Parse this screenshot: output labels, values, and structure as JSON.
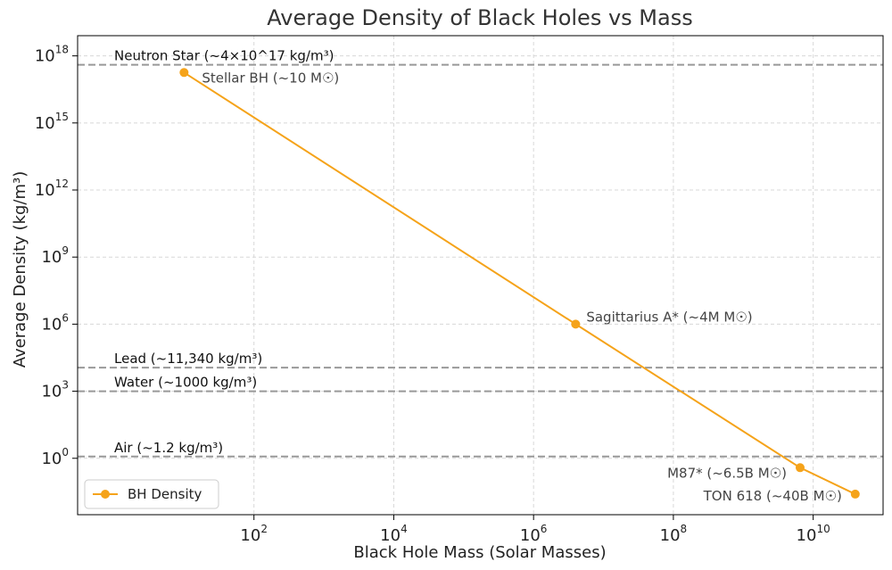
{
  "chart_data": {
    "type": "line",
    "title": "Average Density of Black Holes vs Mass",
    "xlabel": "Black Hole Mass (Solar Masses)",
    "ylabel": "Average Density (kg/m³)",
    "xscale": "log",
    "yscale": "log",
    "xlim": [
      0.3,
      100000000000
    ],
    "ylim": [
      0.003,
      8e+18
    ],
    "grid": true,
    "x_ticks": [
      {
        "value": 100,
        "base": "10",
        "exp": "2"
      },
      {
        "value": 10000,
        "base": "10",
        "exp": "4"
      },
      {
        "value": 1000000,
        "base": "10",
        "exp": "6"
      },
      {
        "value": 100000000,
        "base": "10",
        "exp": "8"
      },
      {
        "value": 10000000000,
        "base": "10",
        "exp": "10"
      }
    ],
    "y_ticks": [
      {
        "value": 1,
        "base": "10",
        "exp": "0"
      },
      {
        "value": 1000,
        "base": "10",
        "exp": "3"
      },
      {
        "value": 1000000,
        "base": "10",
        "exp": "6"
      },
      {
        "value": 1000000000,
        "base": "10",
        "exp": "9"
      },
      {
        "value": 1000000000000,
        "base": "10",
        "exp": "12"
      },
      {
        "value": 1000000000000000,
        "base": "10",
        "exp": "15"
      },
      {
        "value": 1000000000000000000,
        "base": "10",
        "exp": "18"
      }
    ],
    "series": [
      {
        "name": "BH Density",
        "color": "#f5a31a",
        "points": [
          {
            "x": 10,
            "y": 1.8e+17,
            "label": "Stellar BH (~10 M☉)",
            "label_pos": "right-below"
          },
          {
            "x": 4000000,
            "y": 1000000.0,
            "label": "Sagittarius A* (~4M M☉)",
            "label_pos": "right"
          },
          {
            "x": 6500000000,
            "y": 0.38,
            "label": "M87* (~6.5B M☉)",
            "label_pos": "left-below"
          },
          {
            "x": 40000000000,
            "y": 0.025,
            "label": "TON 618 (~40B M☉)",
            "label_pos": "left"
          }
        ]
      }
    ],
    "reference_lines": [
      {
        "y": 4e+17,
        "label": "Neutron Star (~4×10^17 kg/m³)",
        "color": "#999999"
      },
      {
        "y": 11340,
        "label": "Lead (~11,340 kg/m³)",
        "color": "#999999"
      },
      {
        "y": 1000,
        "label": "Water (~1000 kg/m³)",
        "color": "#999999"
      },
      {
        "y": 1.2,
        "label": "Air (~1.2 kg/m³)",
        "color": "#999999"
      }
    ],
    "legend": {
      "position": "bottom-left",
      "entries": [
        "BH Density"
      ]
    }
  }
}
